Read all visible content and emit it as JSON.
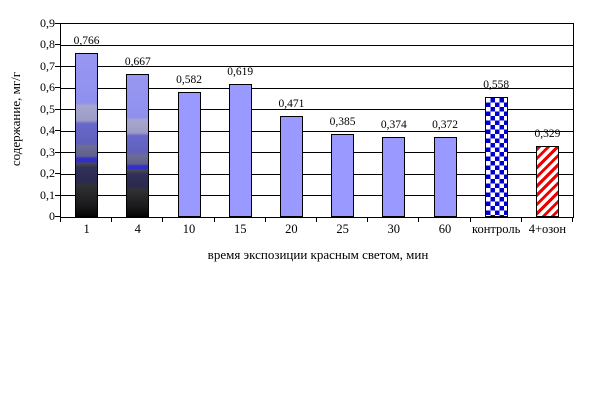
{
  "chart_data": {
    "type": "bar",
    "title": "",
    "xlabel": "время экспозиции красным светом, мин",
    "ylabel": "содержание, мг/г",
    "ylim": [
      0,
      0.9
    ],
    "ytick_step": 0.1,
    "yticks": [
      "0",
      "0,1",
      "0,2",
      "0,3",
      "0,4",
      "0,5",
      "0,6",
      "0,7",
      "0,8",
      "0,9"
    ],
    "categories": [
      "1",
      "4",
      "10",
      "15",
      "20",
      "25",
      "30",
      "60",
      "контроль",
      "4+озон"
    ],
    "values": [
      0.766,
      0.667,
      0.582,
      0.619,
      0.471,
      0.385,
      0.374,
      0.372,
      0.558,
      0.329
    ],
    "value_labels": [
      "0,766",
      "0,667",
      "0,582",
      "0,619",
      "0,471",
      "0,385",
      "0,374",
      "0,372",
      "0,558",
      "0,329"
    ],
    "bar_styles": [
      "photo",
      "photo",
      "solid",
      "solid",
      "solid",
      "solid",
      "solid",
      "solid",
      "checker",
      "stripe"
    ],
    "grid": "horizontal",
    "legend": "none",
    "colors": {
      "solid_fill": "#9999FF",
      "checker_blue": "#0000CC",
      "stripe_red": "#EE0000",
      "axis": "#000000",
      "background": "#FFFFFF"
    }
  }
}
